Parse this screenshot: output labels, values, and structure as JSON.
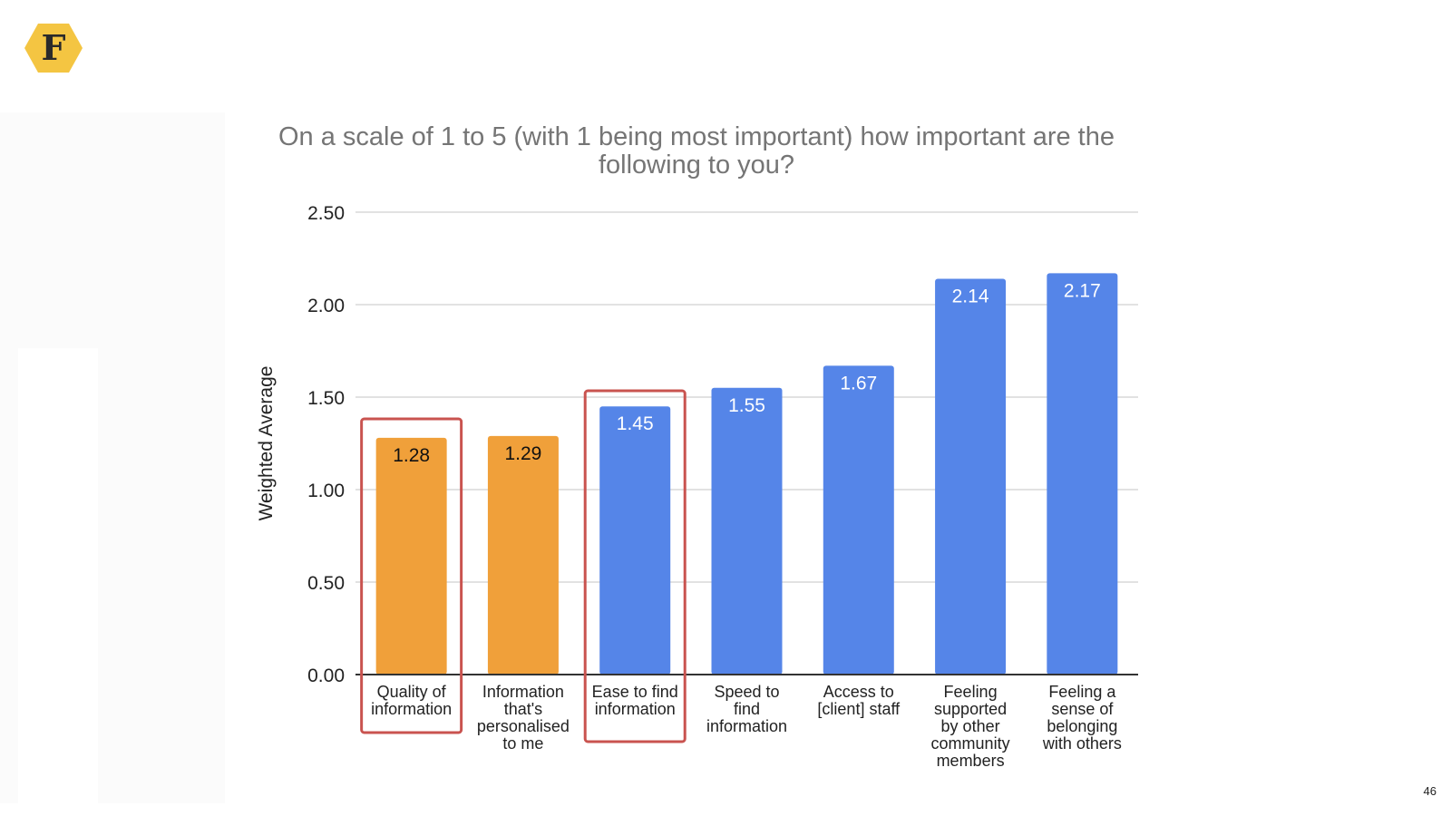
{
  "slide": {
    "logo_letter": "F",
    "logo_color": "#f4c542",
    "page_number": "46"
  },
  "chart_data": {
    "type": "bar",
    "title": "On a scale of 1 to 5 (with 1 being most important) how important are the following to you?",
    "title_lines": [
      "On a scale of 1 to 5 (with 1 being most important) how important are the",
      "following to you?"
    ],
    "xlabel": "",
    "ylabel": "Weighted Average",
    "ylim": [
      0,
      2.5
    ],
    "yticks": [
      "0.00",
      "0.50",
      "1.00",
      "1.50",
      "2.00",
      "2.50"
    ],
    "grid": true,
    "legend": "none",
    "categories": [
      "Quality of information",
      "Information that's personalised to me",
      "Ease to find information",
      "Speed to find information",
      "Access to [client] staff",
      "Feeling supported by other community members",
      "Feeling a sense of belonging with others"
    ],
    "category_lines": [
      [
        "Quality of",
        "information"
      ],
      [
        "Information",
        "that's",
        "personalised",
        "to me"
      ],
      [
        "Ease to find",
        "information"
      ],
      [
        "Speed to",
        "find",
        "information"
      ],
      [
        "Access to",
        "[client] staff"
      ],
      [
        "Feeling",
        "supported",
        "by other",
        "community",
        "members"
      ],
      [
        "Feeling a",
        "sense of",
        "belonging",
        "with others"
      ]
    ],
    "values": [
      1.28,
      1.29,
      1.45,
      1.55,
      1.67,
      2.14,
      2.17
    ],
    "value_labels": [
      "1.28",
      "1.29",
      "1.45",
      "1.55",
      "1.67",
      "2.14",
      "2.17"
    ],
    "bar_colors": [
      "#f0a03a",
      "#f0a03a",
      "#5585e8",
      "#5585e8",
      "#5585e8",
      "#5585e8",
      "#5585e8"
    ],
    "label_colors": [
      "#111111",
      "#111111",
      "#ffffff",
      "#ffffff",
      "#ffffff",
      "#ffffff",
      "#ffffff"
    ],
    "highlighted_indices": [
      0,
      2
    ],
    "highlight_color": "#c9534f",
    "gridline_color": "#d9d9d9",
    "axis_color": "#333333"
  }
}
